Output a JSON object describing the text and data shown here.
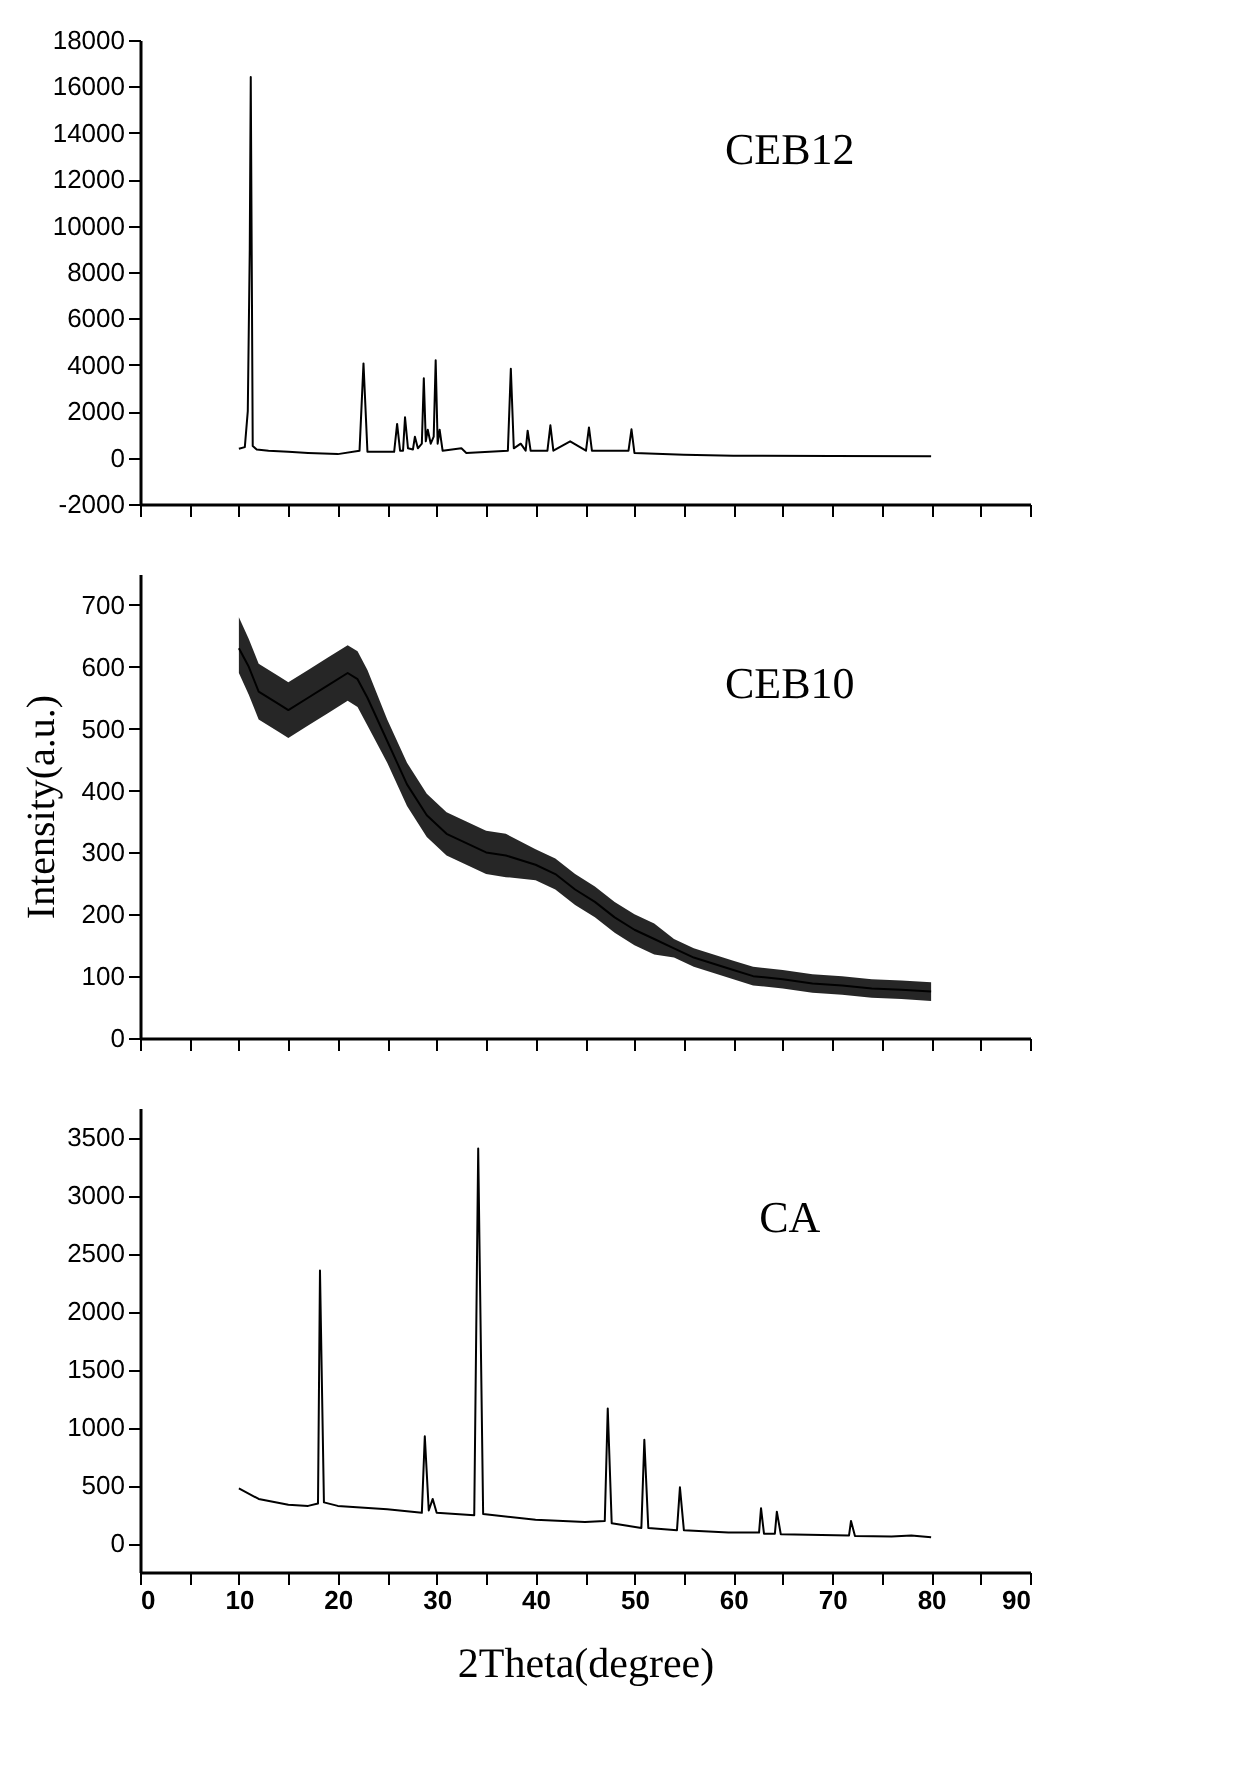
{
  "chart_data": [
    {
      "type": "line",
      "annotations": [
        "CEB12"
      ],
      "xlim": [
        0,
        90
      ],
      "xticks": [
        0,
        {
          "value": 5,
          "label": null
        },
        10,
        {
          "value": 15,
          "label": null
        },
        20,
        {
          "value": 25,
          "label": null
        },
        30,
        {
          "value": 35,
          "label": null
        },
        40,
        {
          "value": 45,
          "label": null
        },
        50,
        {
          "value": 55,
          "label": null
        },
        60,
        {
          "value": 65,
          "label": null
        },
        70,
        {
          "value": 75,
          "label": null
        },
        80,
        {
          "value": 85,
          "label": null
        },
        90
      ],
      "ylim": [
        -2000,
        18000
      ],
      "yticks": [
        -2000,
        0,
        2000,
        4000,
        6000,
        8000,
        10000,
        12000,
        14000,
        16000,
        18000
      ],
      "tick_labels": "y",
      "grid": false,
      "series": [
        {
          "color": "#000000",
          "x": [
            10,
            10.6,
            10.9,
            11.1,
            11.2,
            11.4,
            11.8,
            13,
            15,
            17,
            20,
            22.2,
            22.6,
            23,
            25.7,
            26,
            26.3,
            26.6,
            26.8,
            27.1,
            27.6,
            27.8,
            28.1,
            28.5,
            28.7,
            28.9,
            29.1,
            29.4,
            29.7,
            29.9,
            30.1,
            30.3,
            30.6,
            32.5,
            33,
            37.2,
            37.5,
            37.8,
            38.5,
            39,
            39.2,
            39.5,
            41.2,
            41.5,
            41.8,
            43.5,
            45.1,
            45.4,
            45.7,
            49.4,
            49.7,
            50,
            55,
            60,
            70,
            80
          ],
          "values": [
            380,
            450,
            2000,
            9000,
            16400,
            500,
            350,
            300,
            250,
            200,
            150,
            300,
            4060,
            250,
            250,
            1450,
            300,
            300,
            1740,
            400,
            350,
            900,
            400,
            600,
            3420,
            700,
            1200,
            600,
            900,
            4200,
            600,
            1200,
            300,
            400,
            200,
            300,
            3830,
            400,
            600,
            300,
            1160,
            300,
            300,
            1390,
            300,
            700,
            300,
            1300,
            300,
            300,
            1220,
            200,
            120,
            80,
            70,
            60
          ]
        }
      ]
    },
    {
      "type": "line",
      "annotations": [
        "CEB10"
      ],
      "ylabel": "Intensity(a.u.)",
      "xlim": [
        0,
        90
      ],
      "xticks": [
        0,
        {
          "value": 5,
          "label": null
        },
        10,
        {
          "value": 15,
          "label": null
        },
        20,
        {
          "value": 25,
          "label": null
        },
        30,
        {
          "value": 35,
          "label": null
        },
        40,
        {
          "value": 45,
          "label": null
        },
        50,
        {
          "value": 55,
          "label": null
        },
        60,
        {
          "value": 65,
          "label": null
        },
        70,
        {
          "value": 75,
          "label": null
        },
        80,
        {
          "value": 85,
          "label": null
        },
        90
      ],
      "ylim": [
        0,
        750
      ],
      "yticks": [
        0,
        100,
        200,
        300,
        400,
        500,
        600,
        700
      ],
      "tick_labels": "y",
      "grid": false,
      "series": [
        {
          "color": "#000000",
          "x": [
            10,
            11,
            12,
            14,
            15,
            17,
            19,
            21,
            22,
            23,
            25,
            27,
            29,
            31,
            33,
            35,
            37,
            40,
            42,
            44,
            46,
            48,
            50,
            52,
            54,
            56,
            58,
            60,
            62,
            65,
            68,
            71,
            74,
            77,
            80
          ],
          "values": [
            630,
            600,
            560,
            540,
            530,
            550,
            570,
            590,
            580,
            550,
            480,
            410,
            360,
            330,
            315,
            300,
            295,
            280,
            265,
            240,
            220,
            195,
            175,
            160,
            145,
            130,
            120,
            110,
            100,
            95,
            88,
            85,
            80,
            78,
            75
          ],
          "lower": [
            590,
            555,
            515,
            495,
            485,
            505,
            525,
            545,
            535,
            505,
            445,
            375,
            325,
            295,
            280,
            265,
            260,
            255,
            240,
            215,
            195,
            170,
            150,
            135,
            130,
            115,
            105,
            95,
            85,
            80,
            73,
            70,
            65,
            63,
            60
          ],
          "upper": [
            680,
            645,
            605,
            585,
            575,
            595,
            615,
            635,
            625,
            595,
            515,
            445,
            395,
            365,
            350,
            335,
            330,
            305,
            290,
            265,
            245,
            220,
            200,
            185,
            160,
            145,
            135,
            125,
            115,
            110,
            103,
            100,
            95,
            93,
            90
          ]
        }
      ]
    },
    {
      "type": "line",
      "annotations": [
        "CA"
      ],
      "xlabel": "2Theta(degree)",
      "xlim": [
        0,
        90
      ],
      "xticks": [
        0,
        {
          "value": 5,
          "label": null
        },
        10,
        {
          "value": 15,
          "label": null
        },
        20,
        {
          "value": 25,
          "label": null
        },
        30,
        {
          "value": 35,
          "label": null
        },
        40,
        {
          "value": 45,
          "label": null
        },
        50,
        {
          "value": 55,
          "label": null
        },
        60,
        {
          "value": 65,
          "label": null
        },
        70,
        {
          "value": 75,
          "label": null
        },
        80,
        {
          "value": 85,
          "label": null
        },
        90
      ],
      "ylim": [
        -250,
        3750
      ],
      "yticks": [
        0,
        500,
        1000,
        1500,
        2000,
        2500,
        3000,
        3500
      ],
      "grid": false,
      "series": [
        {
          "color": "#000000",
          "x": [
            10,
            12,
            15,
            17,
            18,
            18.2,
            18.6,
            20,
            25,
            28.5,
            28.8,
            29.2,
            29.6,
            30,
            33.8,
            34.2,
            34.7,
            40,
            45,
            47,
            47.3,
            47.7,
            50.7,
            51,
            51.4,
            54.3,
            54.6,
            55,
            59.5,
            62.6,
            62.8,
            63.1,
            64.2,
            64.4,
            64.8,
            71.7,
            71.9,
            72.3,
            76,
            78,
            80
          ],
          "values": [
            470,
            380,
            330,
            320,
            340,
            2350,
            350,
            320,
            290,
            260,
            920,
            280,
            380,
            260,
            240,
            3400,
            250,
            200,
            180,
            190,
            1160,
            170,
            130,
            890,
            130,
            110,
            480,
            110,
            90,
            90,
            300,
            80,
            80,
            270,
            75,
            65,
            190,
            60,
            55,
            65,
            50
          ]
        }
      ]
    }
  ]
}
